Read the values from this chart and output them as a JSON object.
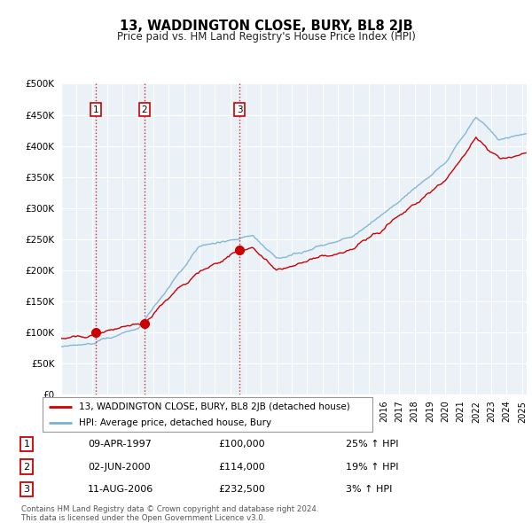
{
  "title": "13, WADDINGTON CLOSE, BURY, BL8 2JB",
  "subtitle": "Price paid vs. HM Land Registry's House Price Index (HPI)",
  "sale_year_nums": [
    1997.274,
    2000.418,
    2006.614
  ],
  "sale_prices": [
    100000,
    114000,
    232500
  ],
  "sale_labels": [
    "1",
    "2",
    "3"
  ],
  "legend_line1": "13, WADDINGTON CLOSE, BURY, BL8 2JB (detached house)",
  "legend_line2": "HPI: Average price, detached house, Bury",
  "footer": "Contains HM Land Registry data © Crown copyright and database right 2024.\nThis data is licensed under the Open Government Licence v3.0.",
  "price_line_color": "#cc0000",
  "hpi_line_color": "#7ab0d4",
  "bg_color": "#dce8f0",
  "plot_bg_color": "#eaf2f8",
  "ylim": [
    0,
    500000
  ],
  "yticks": [
    0,
    50000,
    100000,
    150000,
    200000,
    250000,
    300000,
    350000,
    400000,
    450000,
    500000
  ],
  "xlim_start": 1995.0,
  "xlim_end": 2025.3,
  "table_rows": [
    [
      "1",
      "09-APR-1997",
      "£100,000",
      "25% ↑ HPI"
    ],
    [
      "2",
      "02-JUN-2000",
      "£114,000",
      "19% ↑ HPI"
    ],
    [
      "3",
      "11-AUG-2006",
      "£232,500",
      "3% ↑ HPI"
    ]
  ]
}
